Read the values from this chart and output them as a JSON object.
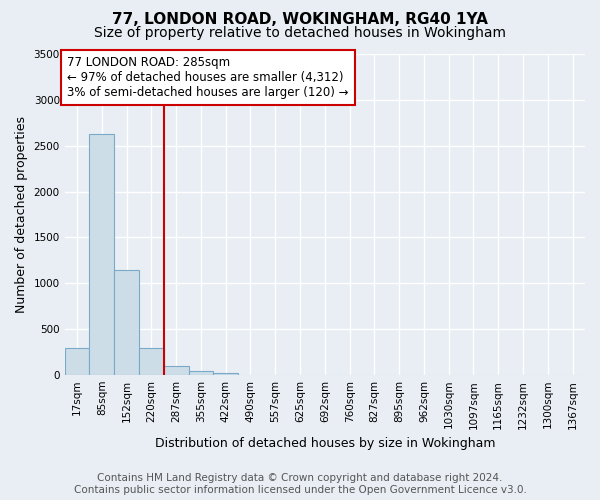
{
  "title": "77, LONDON ROAD, WOKINGHAM, RG40 1YA",
  "subtitle": "Size of property relative to detached houses in Wokingham",
  "xlabel": "Distribution of detached houses by size in Wokingham",
  "ylabel": "Number of detached properties",
  "categories": [
    "17sqm",
    "85sqm",
    "152sqm",
    "220sqm",
    "287sqm",
    "355sqm",
    "422sqm",
    "490sqm",
    "557sqm",
    "625sqm",
    "692sqm",
    "760sqm",
    "827sqm",
    "895sqm",
    "962sqm",
    "1030sqm",
    "1097sqm",
    "1165sqm",
    "1232sqm",
    "1300sqm",
    "1367sqm"
  ],
  "values": [
    290,
    2630,
    1140,
    290,
    100,
    45,
    25,
    0,
    0,
    0,
    0,
    0,
    0,
    0,
    0,
    0,
    0,
    0,
    0,
    0,
    0
  ],
  "bar_color": "#ccdde8",
  "bar_edge_color": "#7aaac8",
  "vline_color": "#cc0000",
  "vline_position": 3.5,
  "annotation_text": "77 LONDON ROAD: 285sqm\n← 97% of detached houses are smaller (4,312)\n3% of semi-detached houses are larger (120) →",
  "annotation_box_facecolor": "#ffffff",
  "annotation_box_edgecolor": "#cc0000",
  "ylim": [
    0,
    3500
  ],
  "yticks": [
    0,
    500,
    1000,
    1500,
    2000,
    2500,
    3000,
    3500
  ],
  "bg_color": "#e8eef4",
  "plot_bg_color": "#e8eef4",
  "grid_color": "#ffffff",
  "title_fontsize": 11,
  "subtitle_fontsize": 10,
  "annotation_fontsize": 8.5,
  "tick_fontsize": 7.5,
  "axis_label_fontsize": 9,
  "footer_fontsize": 7.5,
  "footer_line1": "Contains HM Land Registry data © Crown copyright and database right 2024.",
  "footer_line2": "Contains public sector information licensed under the Open Government Licence v3.0."
}
